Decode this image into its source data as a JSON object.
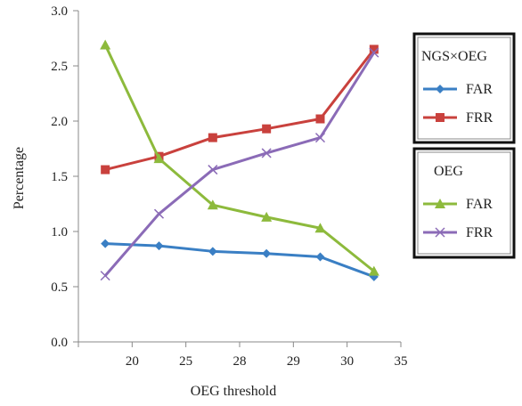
{
  "chart_data": {
    "type": "line",
    "xlabel": "OEG threshold",
    "ylabel": "Percentage",
    "categories": [
      "20",
      "25",
      "28",
      "29",
      "30",
      "35"
    ],
    "ylim": [
      0,
      3.0
    ],
    "yticks": [
      "0.0",
      "0.5",
      "1.0",
      "1.5",
      "2.0",
      "2.5",
      "3.0"
    ],
    "grid": false,
    "legend_position": "right",
    "legend_groups": [
      {
        "title": "NGS×OEG",
        "series": [
          {
            "name": "FAR",
            "color": "#3a7fc4",
            "marker": "diamond",
            "values": [
              0.89,
              0.87,
              0.82,
              0.8,
              0.77,
              0.59
            ]
          },
          {
            "name": "FRR",
            "color": "#c9413d",
            "marker": "square",
            "values": [
              1.56,
              1.68,
              1.85,
              1.93,
              2.02,
              2.65
            ]
          }
        ]
      },
      {
        "title": "OEG",
        "series": [
          {
            "name": "FAR",
            "color": "#8dba3c",
            "marker": "triangle",
            "values": [
              2.69,
              1.66,
              1.24,
              1.13,
              1.03,
              0.64
            ]
          },
          {
            "name": "FRR",
            "color": "#8b6bb7",
            "marker": "x",
            "values": [
              0.6,
              1.16,
              1.56,
              1.71,
              1.85,
              2.62
            ]
          }
        ]
      }
    ]
  }
}
